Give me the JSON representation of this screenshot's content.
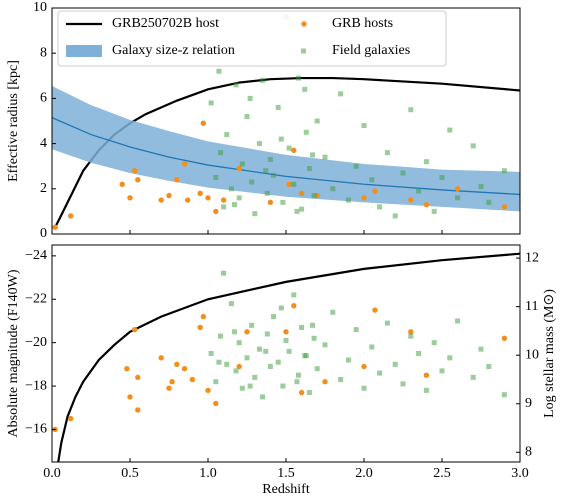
{
  "chart_data": [
    {
      "type": "scatter",
      "ylabel": "Effective radius [kpc]",
      "xlim": [
        0,
        3.0
      ],
      "ylim": [
        0,
        10
      ],
      "yticks": [
        0,
        2,
        4,
        6,
        8,
        10
      ],
      "legend": "upper left",
      "series": [
        {
          "name": "GRB250702B host",
          "type": "line",
          "color": "#000000",
          "x": [
            0.02,
            0.05,
            0.1,
            0.2,
            0.3,
            0.4,
            0.5,
            0.6,
            0.8,
            1.0,
            1.2,
            1.4,
            1.6,
            1.8,
            2.0,
            2.5,
            3.0
          ],
          "values": [
            0.3,
            0.7,
            1.4,
            2.8,
            3.7,
            4.4,
            4.9,
            5.3,
            5.9,
            6.4,
            6.7,
            6.85,
            6.9,
            6.9,
            6.85,
            6.65,
            6.35
          ]
        },
        {
          "name": "Galaxy size-z relation",
          "type": "band",
          "color": "#7fb0d8",
          "line_color": "#1f77b4",
          "x": [
            0,
            0.25,
            0.5,
            0.75,
            1,
            1.5,
            2,
            2.5,
            3
          ],
          "values": [
            5.15,
            4.4,
            3.85,
            3.4,
            3.05,
            2.55,
            2.2,
            1.95,
            1.75
          ],
          "upper": [
            6.55,
            5.7,
            5.05,
            4.55,
            4.1,
            3.5,
            3.1,
            2.85,
            2.75
          ],
          "lower": [
            3.75,
            3.15,
            2.7,
            2.35,
            2.05,
            1.65,
            1.4,
            1.2,
            1.0
          ]
        },
        {
          "name": "GRB hosts",
          "type": "points",
          "marker": "o",
          "color": "#f28e1c",
          "x": [
            0.02,
            0.12,
            0.45,
            0.5,
            0.53,
            0.55,
            0.7,
            0.75,
            0.8,
            0.85,
            0.87,
            0.95,
            0.97,
            1.0,
            1.05,
            1.1,
            1.2,
            1.4,
            1.52,
            1.55,
            1.6,
            1.7,
            2.0,
            2.07,
            2.3,
            2.4,
            2.6,
            2.9
          ],
          "values": [
            0.3,
            0.8,
            2.2,
            1.6,
            2.8,
            2.4,
            1.5,
            1.7,
            2.4,
            3.1,
            1.5,
            1.8,
            4.9,
            1.6,
            1.0,
            1.5,
            2.9,
            1.4,
            2.2,
            3.7,
            1.8,
            1.7,
            1.6,
            1.9,
            1.5,
            1.3,
            2.0,
            1.2
          ]
        },
        {
          "name": "Field galaxies",
          "type": "points",
          "marker": "s",
          "color": "#3a9a3a",
          "x": [
            1.02,
            1.05,
            1.08,
            1.1,
            1.12,
            1.15,
            1.18,
            1.2,
            1.22,
            1.25,
            1.28,
            1.3,
            1.33,
            1.35,
            1.38,
            1.4,
            1.42,
            1.45,
            1.48,
            1.5,
            1.52,
            1.55,
            1.58,
            1.6,
            1.63,
            1.65,
            1.68,
            1.7,
            1.75,
            1.8,
            1.85,
            1.9,
            1.95,
            2.0,
            2.05,
            2.1,
            2.15,
            2.2,
            2.25,
            2.3,
            2.35,
            2.4,
            2.45,
            2.5,
            2.55,
            2.6,
            2.7,
            2.75,
            2.8,
            2.9,
            1.07,
            1.17,
            1.27,
            1.37,
            1.47,
            1.57,
            1.67,
            1.62
          ],
          "values": [
            5.8,
            2.5,
            3.6,
            1.2,
            4.4,
            2.0,
            6.6,
            1.6,
            3.1,
            5.2,
            2.3,
            0.9,
            4.0,
            6.8,
            1.8,
            3.3,
            2.6,
            5.6,
            1.4,
            9.6,
            3.8,
            2.2,
            6.9,
            1.1,
            4.5,
            2.9,
            1.7,
            5.0,
            3.4,
            2.0,
            6.2,
            1.5,
            3.0,
            4.8,
            2.4,
            1.2,
            3.6,
            0.8,
            2.7,
            5.5,
            1.9,
            3.2,
            1.0,
            2.5,
            4.6,
            1.6,
            3.9,
            2.1,
            1.4,
            2.8,
            7.2,
            1.3,
            6.0,
            2.8,
            4.2,
            1.0,
            3.5,
            6.4
          ]
        }
      ]
    },
    {
      "type": "scatter",
      "xlabel": "Redshift",
      "ylabel": "Absolute magnitude (F140W)",
      "y2label": "Log stellar mass (M⊙)",
      "xlim": [
        0,
        3.0
      ],
      "xticks": [
        {
          "value": 0,
          "label": "0.0"
        },
        {
          "value": 0.5,
          "label": "0.5"
        },
        {
          "value": 1.0,
          "label": "1.0"
        },
        {
          "value": 1.5,
          "label": "1.5"
        },
        {
          "value": 2.0,
          "label": "2.0"
        },
        {
          "value": 2.5,
          "label": "2.5"
        },
        {
          "value": 3.0,
          "label": "3.0"
        }
      ],
      "ylim": [
        -14.5,
        -24.5
      ],
      "yticks": [
        {
          "value": -16,
          "label": "−16"
        },
        {
          "value": -18,
          "label": "−18"
        },
        {
          "value": -20,
          "label": "−20"
        },
        {
          "value": -22,
          "label": "−22"
        },
        {
          "value": -24,
          "label": "−24"
        }
      ],
      "y2lim": [
        7.8,
        12.27
      ],
      "y2ticks": [
        8,
        9,
        10,
        11,
        12
      ],
      "series": [
        {
          "type": "line",
          "color": "#000000",
          "x": [
            0.04,
            0.06,
            0.1,
            0.15,
            0.2,
            0.3,
            0.4,
            0.5,
            0.7,
            1.0,
            1.5,
            2.0,
            2.5,
            3.0
          ],
          "values": [
            -14.5,
            -15.4,
            -16.6,
            -17.5,
            -18.2,
            -19.2,
            -19.9,
            -20.5,
            -21.2,
            -22.0,
            -22.8,
            -23.4,
            -23.8,
            -24.1
          ]
        },
        {
          "type": "points",
          "marker": "o",
          "color": "#f28e1c",
          "x": [
            0.02,
            0.12,
            0.48,
            0.5,
            0.53,
            0.55,
            0.55,
            0.7,
            0.75,
            0.77,
            0.8,
            0.85,
            0.9,
            0.95,
            0.97,
            1.0,
            1.05,
            1.2,
            1.25,
            1.5,
            1.55,
            1.6,
            1.75,
            2.0,
            2.07,
            2.3,
            2.4,
            2.9
          ],
          "values": [
            -16.0,
            -16.5,
            -18.8,
            -17.5,
            -20.6,
            -16.9,
            -18.4,
            -19.3,
            -17.9,
            -18.2,
            -19.0,
            -18.8,
            -18.3,
            -20.7,
            -21.2,
            -17.8,
            -17.2,
            -18.9,
            -20.5,
            -20.5,
            -21.7,
            -17.7,
            -18.2,
            -18.9,
            -21.5,
            -20.5,
            -18.5,
            -20.2
          ]
        },
        {
          "type": "points",
          "marker": "s",
          "color": "#3a9a3a",
          "x": [
            1.02,
            1.05,
            1.08,
            1.1,
            1.12,
            1.15,
            1.18,
            1.2,
            1.22,
            1.25,
            1.28,
            1.3,
            1.33,
            1.35,
            1.38,
            1.4,
            1.42,
            1.45,
            1.48,
            1.5,
            1.52,
            1.55,
            1.58,
            1.6,
            1.63,
            1.65,
            1.68,
            1.7,
            1.75,
            1.8,
            1.85,
            1.9,
            1.95,
            2.0,
            2.05,
            2.1,
            2.15,
            2.2,
            2.25,
            2.3,
            2.35,
            2.4,
            2.45,
            2.5,
            2.55,
            2.6,
            2.7,
            2.75,
            2.8,
            2.9,
            1.07,
            1.17,
            1.27,
            1.37,
            1.47,
            1.57,
            1.67,
            1.62
          ],
          "values": [
            -19.5,
            -18.2,
            -20.3,
            -23.2,
            -19.0,
            -21.8,
            -18.7,
            -20.0,
            -17.9,
            -19.3,
            -20.8,
            -18.4,
            -19.7,
            -17.5,
            -20.4,
            -18.9,
            -21.2,
            -19.1,
            -18.0,
            -20.1,
            -19.6,
            -22.2,
            -18.5,
            -20.7,
            -19.4,
            -17.7,
            -20.2,
            -18.8,
            -19.9,
            -21.4,
            -18.3,
            -19.2,
            -20.6,
            -17.9,
            -19.8,
            -18.6,
            -20.9,
            -19.0,
            -18.1,
            -20.3,
            -19.5,
            -17.8,
            -20.0,
            -18.7,
            -19.3,
            -21.0,
            -18.4,
            -19.7,
            -18.9,
            -17.6,
            -19.1,
            -20.5,
            -18.0,
            -19.6,
            -21.6,
            -18.2,
            -20.8,
            -19.4
          ]
        }
      ]
    }
  ]
}
